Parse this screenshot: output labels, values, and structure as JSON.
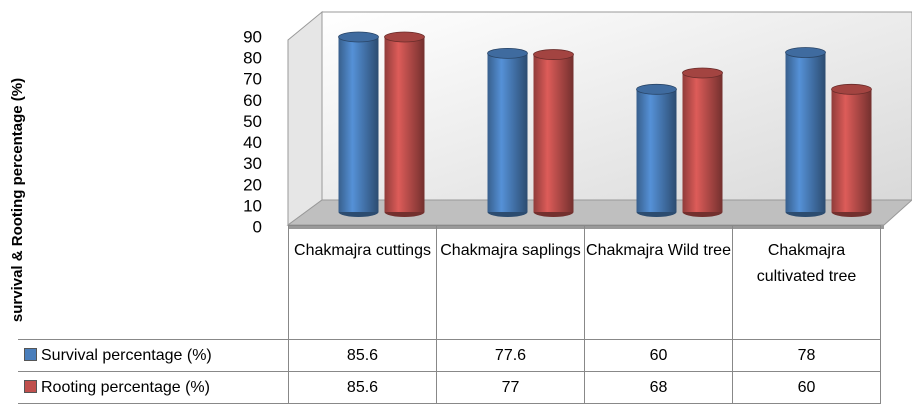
{
  "chart_data": {
    "type": "bar",
    "y_label": "survival & Rooting percentage  (%)",
    "categories": [
      "Chakmajra cuttings",
      "Chakmajra saplings",
      "Chakmajra Wild tree",
      "Chakmajra cultivated tree"
    ],
    "series": [
      {
        "name": "Survival percentage (%)",
        "color": "#4a7ebb",
        "values": [
          85.6,
          77.6,
          60,
          78
        ]
      },
      {
        "name": "Rooting percentage (%)",
        "color": "#c0504d",
        "values": [
          85.6,
          77,
          68,
          60
        ]
      }
    ],
    "ylim": [
      0,
      90
    ],
    "yticks": [
      0,
      10,
      20,
      30,
      40,
      50,
      60,
      70,
      80,
      90
    ],
    "grid": false
  }
}
